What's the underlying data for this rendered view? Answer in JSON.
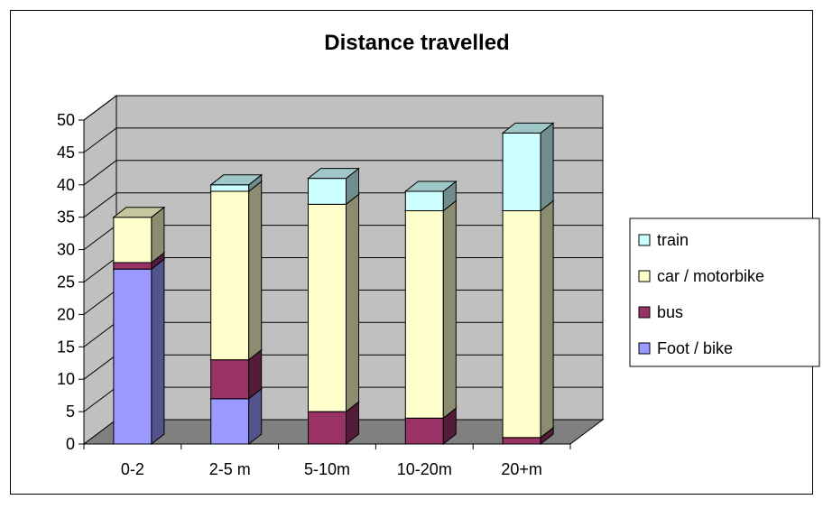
{
  "chart_data": {
    "type": "bar",
    "stacked": true,
    "three_d": true,
    "title": "Distance travelled",
    "xlabel": "",
    "ylabel": "",
    "categories": [
      "0-2",
      "2-5 m",
      "5-10m",
      "10-20m",
      "20+m"
    ],
    "ylim": [
      0,
      50
    ],
    "yticks": [
      0,
      5,
      10,
      15,
      20,
      25,
      30,
      35,
      40,
      45,
      50
    ],
    "grid": true,
    "legend_position": "right",
    "series": [
      {
        "name": "Foot / bike",
        "color": "#9999ff",
        "values": [
          27,
          7,
          0,
          0,
          0
        ]
      },
      {
        "name": "bus",
        "color": "#993366",
        "values": [
          1,
          6,
          5,
          4,
          1
        ]
      },
      {
        "name": "car / motorbike",
        "color": "#ffffcc",
        "values": [
          7,
          26,
          32,
          32,
          35
        ]
      },
      {
        "name": "train",
        "color": "#ccffff",
        "values": [
          0,
          1,
          4,
          3,
          12
        ]
      }
    ],
    "legend_order": [
      "train",
      "car / motorbike",
      "bus",
      "Foot / bike"
    ],
    "colors": {
      "plot_wall": "#c0c0c0",
      "plot_floor": "#808080",
      "border": "#000000"
    }
  }
}
